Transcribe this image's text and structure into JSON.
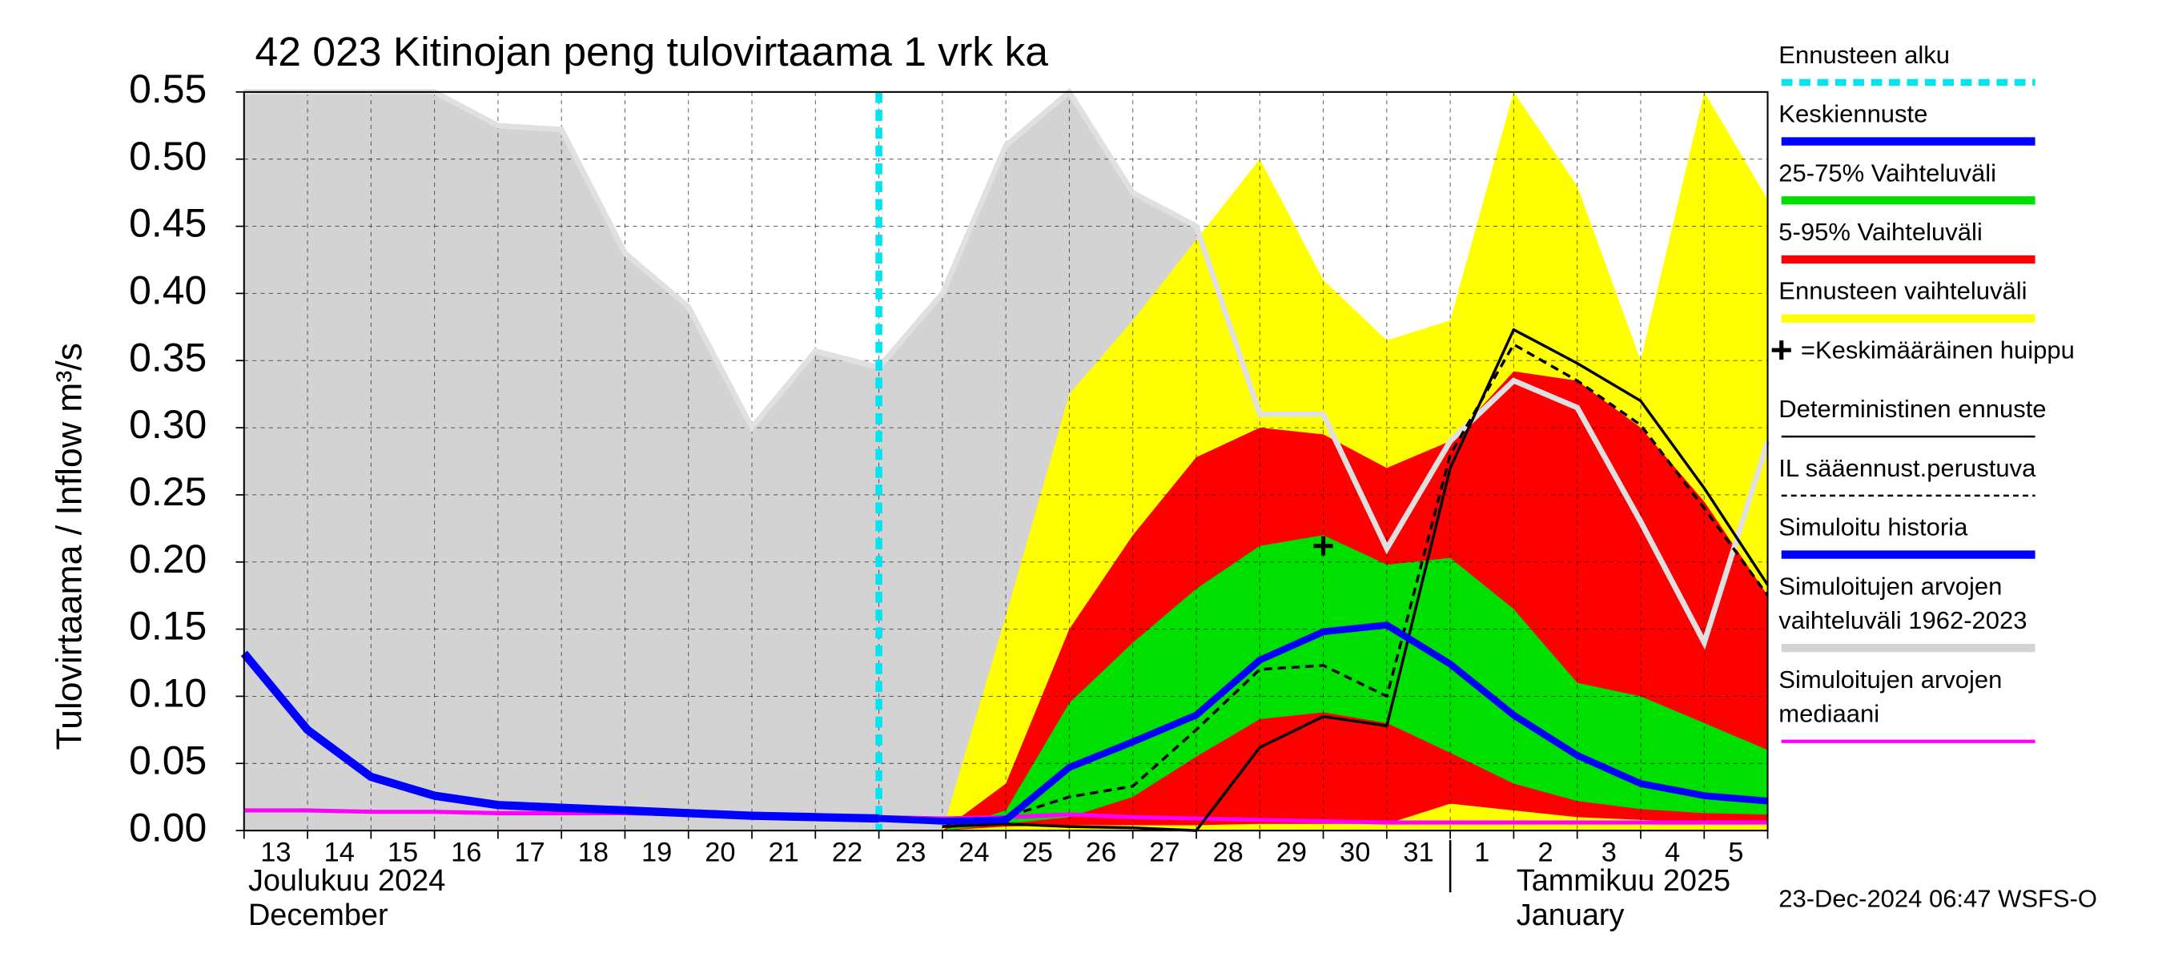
{
  "chart_data": {
    "type": "line",
    "title": "42 023 Kitinojan peng tulovirtaama 1 vrk ka",
    "y_label": "Tulovirtaama / Inflow   m³/s",
    "categories": [
      "13",
      "14",
      "15",
      "16",
      "17",
      "18",
      "19",
      "20",
      "21",
      "22",
      "23",
      "24",
      "25",
      "26",
      "27",
      "28",
      "29",
      "30",
      "31",
      "1",
      "2",
      "3",
      "4",
      "5",
      null
    ],
    "month_labels": [
      "Joulukuu  2024",
      "December",
      "Tammikuu  2025",
      "January"
    ],
    "footer": "23-Dec-2024 06:47 WSFS-O",
    "ylim": [
      0,
      0.55
    ],
    "yticks": [
      {
        "value": 0,
        "label": "0.00"
      },
      {
        "value": 0.05,
        "label": "0.05"
      },
      {
        "value": 0.1,
        "label": "0.10"
      },
      {
        "value": 0.15,
        "label": "0.15"
      },
      {
        "value": 0.2,
        "label": "0.20"
      },
      {
        "value": 0.25,
        "label": "0.25"
      },
      {
        "value": 0.3,
        "label": "0.30"
      },
      {
        "value": 0.35,
        "label": "0.35"
      },
      {
        "value": 0.4,
        "label": "0.40"
      },
      {
        "value": 0.45,
        "label": "0.45"
      },
      {
        "value": 0.5,
        "label": "0.50"
      },
      {
        "value": 0.55,
        "label": "0.55"
      }
    ],
    "grid": true,
    "forecast_start": {
      "name": "Ennusteen alku",
      "color": "#00e5ee",
      "category": "23"
    },
    "series": [
      {
        "name": "Keskiennuste",
        "kind": "line",
        "color": "#0000ff",
        "width": 5,
        "values": [
          null,
          null,
          null,
          null,
          null,
          null,
          null,
          null,
          null,
          null,
          0.009,
          0.007,
          0.008,
          0.047,
          0.066,
          0.086,
          0.127,
          0.148,
          0.153,
          0.124,
          0.086,
          0.056,
          0.035,
          0.026,
          0.022
        ]
      },
      {
        "name": "25-75% Vaihteluväli",
        "kind": "band",
        "color": "#00e000",
        "upper": [
          null,
          null,
          null,
          null,
          null,
          null,
          null,
          null,
          null,
          null,
          null,
          0,
          0.015,
          0.095,
          0.14,
          0.18,
          0.212,
          0.22,
          0.198,
          0.203,
          0.165,
          0.11,
          0.1,
          0.08,
          0.06
        ],
        "lower": [
          null,
          null,
          null,
          null,
          null,
          null,
          null,
          null,
          null,
          null,
          null,
          0,
          0.005,
          0.01,
          0.025,
          0.055,
          0.083,
          0.088,
          0.08,
          0.058,
          0.035,
          0.022,
          0.016,
          0.013,
          0.012
        ]
      },
      {
        "name": "5-95% Vaihteluväli",
        "kind": "band",
        "color": "#ff0000",
        "upper": [
          null,
          null,
          null,
          null,
          null,
          null,
          null,
          null,
          null,
          null,
          null,
          0,
          0.035,
          0.15,
          0.22,
          0.278,
          0.3,
          0.295,
          0.27,
          0.29,
          0.342,
          0.335,
          0.3,
          0.245,
          0.175
        ],
        "lower": [
          null,
          null,
          null,
          null,
          null,
          null,
          null,
          null,
          null,
          null,
          null,
          0,
          0.003,
          0.004,
          0.004,
          0.004,
          0.005,
          0.005,
          0.005,
          0.02,
          0.015,
          0.01,
          0.008,
          0.006,
          0.005
        ]
      },
      {
        "name": "Ennusteen vaihteluväli",
        "kind": "band",
        "color": "#ffff00",
        "upper": [
          null,
          null,
          null,
          null,
          null,
          null,
          null,
          null,
          null,
          null,
          null,
          0,
          0.16,
          0.325,
          0.38,
          0.44,
          0.5,
          0.41,
          0.365,
          0.38,
          0.55,
          0.48,
          0.35,
          0.55,
          0.47
        ],
        "lower": [
          null,
          null,
          null,
          null,
          null,
          null,
          null,
          null,
          null,
          null,
          null,
          0,
          0,
          0,
          0,
          0,
          0,
          0,
          0,
          0,
          0,
          0,
          0,
          0,
          0
        ]
      },
      {
        "name": "=Keskimääräinen huippu",
        "kind": "marker",
        "color": "#000000",
        "values": [
          null,
          null,
          null,
          null,
          null,
          null,
          null,
          null,
          null,
          null,
          null,
          null,
          null,
          null,
          null,
          null,
          null,
          0.212,
          null,
          null,
          null,
          null,
          null,
          null,
          null
        ]
      },
      {
        "name": "Deterministinen ennuste",
        "kind": "line",
        "color": "#000000",
        "width": 2,
        "values": [
          null,
          null,
          null,
          null,
          null,
          null,
          null,
          null,
          null,
          null,
          null,
          0.003,
          0.005,
          0.003,
          0.002,
          0,
          0.062,
          0.085,
          0.078,
          0.27,
          0.373,
          0.348,
          0.32,
          0.255,
          0.183
        ]
      },
      {
        "name": "IL sääennust.perustuva",
        "kind": "line",
        "color": "#000000",
        "width": 2,
        "dashed": true,
        "values": [
          null,
          null,
          null,
          null,
          null,
          null,
          null,
          null,
          null,
          null,
          null,
          0.003,
          0.01,
          0.025,
          0.033,
          0.075,
          0.12,
          0.123,
          0.1,
          0.28,
          0.362,
          0.335,
          0.302,
          0.24,
          0.175
        ]
      },
      {
        "name": "Simuloitu historia",
        "kind": "line",
        "color": "#0000ff",
        "width": 6,
        "values": [
          0.132,
          0.075,
          0.04,
          0.026,
          0.019,
          0.017,
          0.015,
          0.013,
          0.011,
          0.01,
          0.009,
          null,
          null,
          null,
          null,
          null,
          null,
          null,
          null,
          null,
          null,
          null,
          null,
          null,
          null
        ]
      },
      {
        "name": "Simuloitujen arvojen vaihteluväli 1962-2023",
        "kind": "band",
        "color": "#d3d3d3",
        "edge_color": "#e0e0e0",
        "upper": [
          0.55,
          0.55,
          0.55,
          0.55,
          0.525,
          0.522,
          0.43,
          0.39,
          0.3,
          0.357,
          0.345,
          0.4,
          0.51,
          0.55,
          0.475,
          0.45,
          0.31,
          0.31,
          0.21,
          0.29,
          0.335,
          0.315,
          0.23,
          0.14,
          0.29
        ],
        "lower": [
          0,
          0,
          0,
          0,
          0,
          0,
          0,
          0,
          0,
          0,
          0,
          0,
          0,
          0,
          0,
          0,
          0,
          0,
          0,
          0,
          0,
          0,
          0,
          0,
          0
        ]
      },
      {
        "name": "Simuloitujen arvojen mediaani",
        "kind": "line",
        "color": "#ff00ff",
        "width": 3,
        "values": [
          0.015,
          0.015,
          0.014,
          0.014,
          0.013,
          0.013,
          0.013,
          0.012,
          0.011,
          0.011,
          0.01,
          0.009,
          0.01,
          0.012,
          0.01,
          0.009,
          0.008,
          0.007,
          0.006,
          0.006,
          0.006,
          0.006,
          0.006,
          0.006,
          0.006
        ]
      }
    ]
  }
}
